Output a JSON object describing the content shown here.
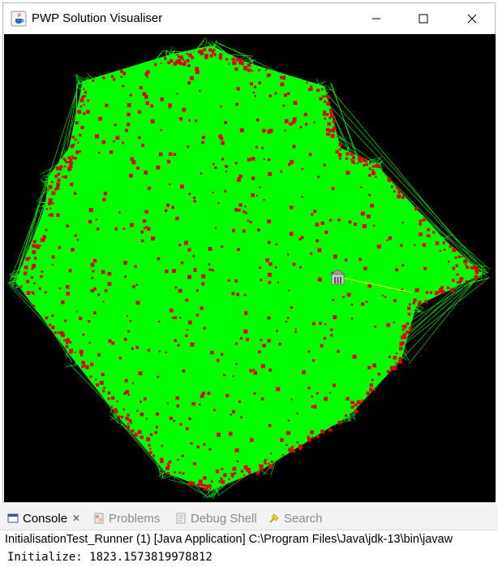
{
  "window": {
    "title": "PWP Solution Visualiser",
    "app_icon": "java-cup-icon",
    "controls": [
      "minimize-icon",
      "maximize-icon",
      "close-icon"
    ]
  },
  "visualiser": {
    "background": "#000000",
    "edge_color": "#00ff00",
    "node_color": "#e00000",
    "highlight_edge_color": "#ffff00",
    "depot_icon": "building-icon"
  },
  "console": {
    "tabs": [
      {
        "label": "Console",
        "icon": "console-icon",
        "active": true,
        "closable": true
      },
      {
        "label": "Problems",
        "icon": "problems-icon",
        "active": false
      },
      {
        "label": "Debug Shell",
        "icon": "debug-shell-icon",
        "active": false
      },
      {
        "label": "Search",
        "icon": "search-icon",
        "active": false
      }
    ],
    "description": "InitialisationTest_Runner (1) [Java Application] C:\\Program Files\\Java\\jdk-13\\bin\\javaw",
    "output": "Initialize: 1823.1573819978812"
  }
}
